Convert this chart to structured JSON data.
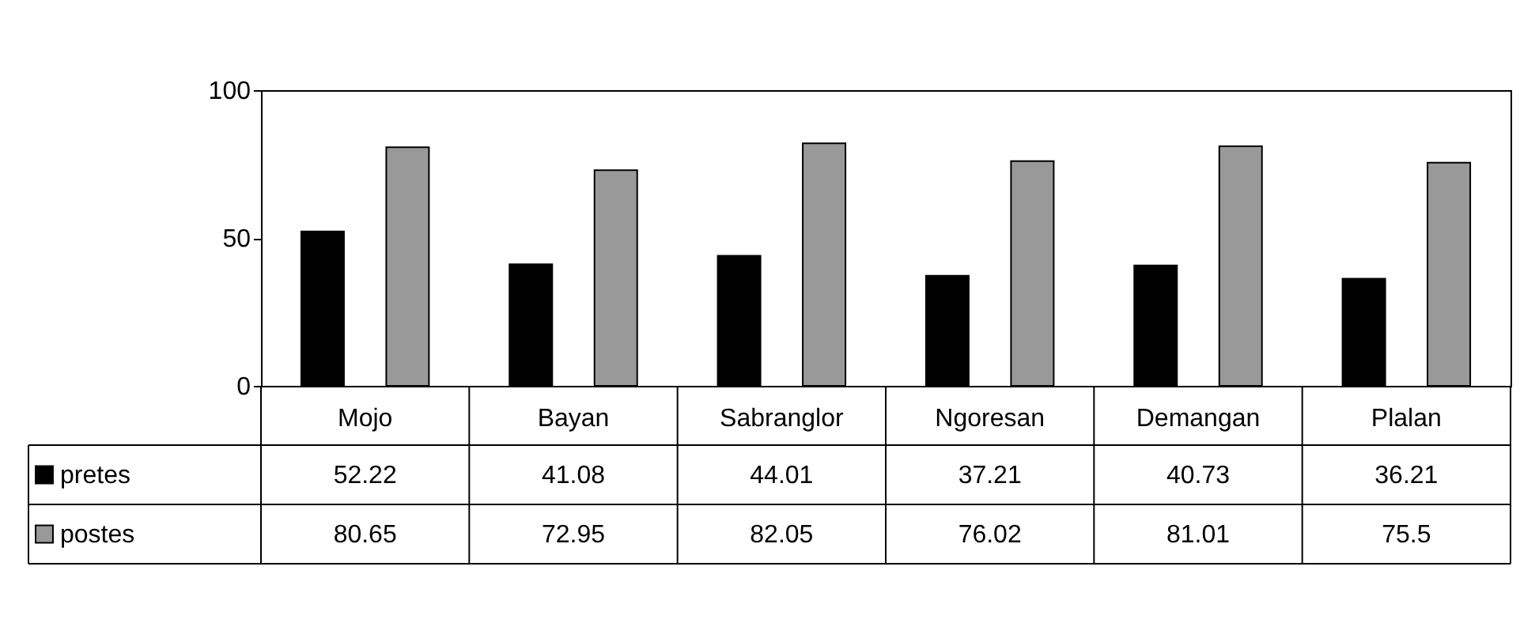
{
  "chart_data": {
    "type": "bar",
    "categories": [
      "Mojo",
      "Bayan",
      "Sabranglor",
      "Ngoresan",
      "Demangan",
      "Plalan"
    ],
    "series": [
      {
        "name": "pretes",
        "color": "#000000",
        "values": [
          52.22,
          41.08,
          44.01,
          37.21,
          40.73,
          36.21
        ]
      },
      {
        "name": "postes",
        "color": "#999999",
        "values": [
          80.65,
          72.95,
          82.05,
          76.02,
          81.01,
          75.5
        ]
      }
    ],
    "ylim": [
      0,
      100
    ],
    "yticks": [
      0,
      50,
      100
    ],
    "grid": false,
    "legend": "bottom left",
    "data_labels": true
  }
}
